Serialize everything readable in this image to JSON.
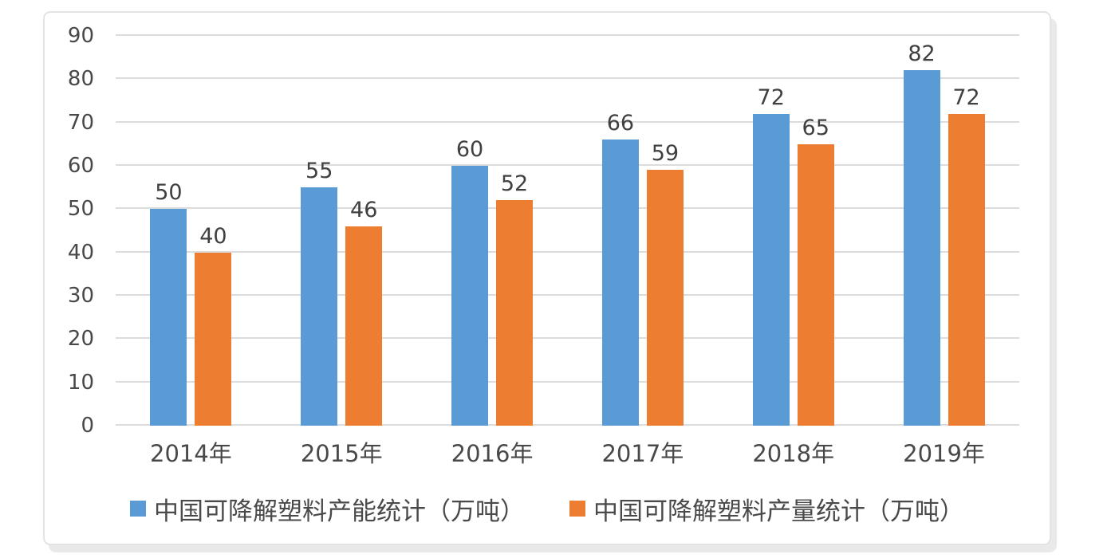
{
  "chart_data": {
    "type": "bar",
    "title": "",
    "xlabel": "",
    "ylabel": "",
    "categories": [
      "2014年",
      "2015年",
      "2016年",
      "2017年",
      "2018年",
      "2019年"
    ],
    "series": [
      {
        "name": "中国可降解塑料产能统计（万吨）",
        "key": "capacity",
        "color": "#5B9BD5",
        "values": [
          50,
          55,
          60,
          66,
          72,
          82
        ]
      },
      {
        "name": "中国可降解塑料产量统计（万吨）",
        "key": "output",
        "color": "#ED7D31",
        "values": [
          40,
          46,
          52,
          59,
          65,
          72
        ]
      }
    ],
    "ylim": [
      0,
      90
    ],
    "yticks": [
      0,
      10,
      20,
      30,
      40,
      50,
      60,
      70,
      80,
      90
    ],
    "grid": true,
    "data_labels": true,
    "legend_position": "bottom"
  },
  "colors": {
    "gridline": "#dcdcdc",
    "axis_text": "#484848",
    "data_label_text": "#404040",
    "legend_text": "#4a4a4a",
    "frame_border": "#e3e3e3",
    "frame_shadow": "#e9e9e9",
    "background": "#ffffff"
  }
}
